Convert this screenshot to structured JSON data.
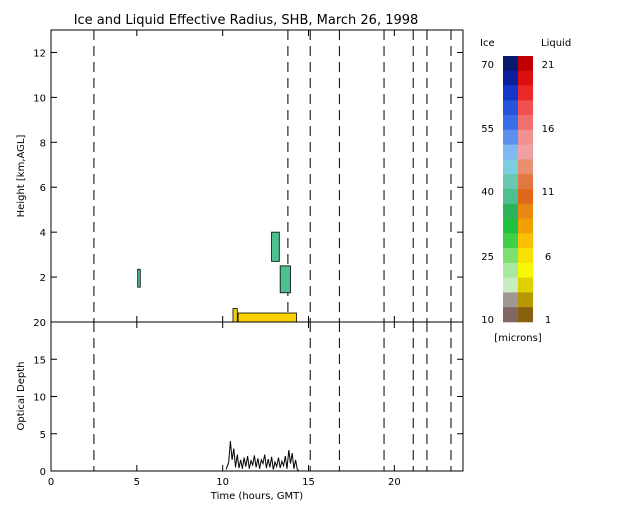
{
  "chart_data": [
    {
      "type": "heatmap",
      "title": "Ice and Liquid Effective Radius, SHB, March 26, 1998",
      "ylabel": "Height [km,AGL]",
      "xlim": [
        0,
        24
      ],
      "ylim": [
        0,
        13
      ],
      "yticks": [
        2,
        4,
        6,
        8,
        10,
        12
      ],
      "dashed_times": [
        2.5,
        13.8,
        15.1,
        16.8,
        19.4,
        21.1,
        21.9,
        23.3
      ],
      "ice_regions": [
        {
          "phase": "ice",
          "time_start": 5.05,
          "time_end": 5.2,
          "height_bottom": 1.55,
          "height_top": 2.35
        },
        {
          "phase": "ice",
          "time_start": 12.85,
          "time_end": 13.3,
          "height_bottom": 2.7,
          "height_top": 4.0
        },
        {
          "phase": "ice",
          "time_start": 13.35,
          "time_end": 13.95,
          "height_bottom": 1.3,
          "height_top": 2.5
        }
      ],
      "liquid_regions": [
        {
          "phase": "liquid",
          "time_start": 10.9,
          "time_end": 14.3,
          "height_bottom": 0.0,
          "height_top": 0.4
        },
        {
          "phase": "liquid",
          "time_start": 10.6,
          "time_end": 10.85,
          "height_bottom": 0.0,
          "height_top": 0.6
        }
      ]
    },
    {
      "type": "line",
      "ylabel": "Optical Depth",
      "xlabel": "Time (hours, GMT)",
      "xlim": [
        0,
        24
      ],
      "ylim": [
        0,
        20
      ],
      "xticks": [
        0,
        5,
        10,
        15,
        20
      ],
      "yticks": [
        0,
        5,
        10,
        15,
        20
      ],
      "series": [
        {
          "x": [
            10.2,
            10.35,
            10.45,
            10.55,
            10.65,
            10.75,
            10.85,
            10.95,
            11.05,
            11.15,
            11.25,
            11.35,
            11.45,
            11.55,
            11.65,
            11.75,
            11.85,
            11.95,
            12.05,
            12.15,
            12.25,
            12.35,
            12.45,
            12.55,
            12.65,
            12.75,
            12.85,
            12.95,
            13.05,
            13.15,
            13.25,
            13.35,
            13.45,
            13.55,
            13.65,
            13.75,
            13.85,
            13.95,
            14.05,
            14.15,
            14.25,
            14.35,
            14.45
          ],
          "y": [
            0.2,
            1.2,
            4.0,
            1.5,
            3.0,
            0.5,
            2.2,
            0.4,
            1.5,
            0.3,
            1.8,
            0.6,
            2.0,
            0.3,
            1.4,
            0.8,
            2.1,
            0.5,
            1.7,
            0.3,
            1.5,
            1.0,
            2.2,
            0.4,
            1.6,
            0.5,
            1.9,
            0.2,
            1.2,
            0.6,
            1.8,
            0.4,
            1.3,
            0.7,
            2.0,
            0.3,
            2.8,
            1.0,
            2.4,
            0.3,
            1.5,
            0.2,
            0.0
          ]
        }
      ],
      "dashed_times": [
        2.5,
        15.1,
        16.8,
        19.4,
        21.1,
        21.9,
        23.3
      ]
    }
  ],
  "colorbar": {
    "ice_label": "Ice",
    "liquid_label": "Liquid",
    "units_label": "[microns]",
    "ice_ticks": [
      "70",
      "55",
      "40",
      "25",
      "10"
    ],
    "liquid_ticks": [
      "21",
      "16",
      "11",
      "6",
      "1"
    ],
    "ice_colors": [
      "#0a1a6e",
      "#0c1f9e",
      "#1536c8",
      "#2455dc",
      "#3a6ee8",
      "#5c90ee",
      "#82b8f0",
      "#7ccfe0",
      "#68c8b0",
      "#4cc090",
      "#2cb45c",
      "#20c040",
      "#40d048",
      "#7ce070",
      "#a8e8a0",
      "#c8ecc0",
      "#a09890",
      "#806860"
    ],
    "liquid_colors": [
      "#c00000",
      "#dc1010",
      "#ec2828",
      "#f05050",
      "#f07070",
      "#f09090",
      "#f0a0a0",
      "#e89070",
      "#e07840",
      "#e06818",
      "#e88810",
      "#f0a000",
      "#f8c000",
      "#f8e000",
      "#f8f800",
      "#e0d000",
      "#b89800",
      "#886010"
    ]
  }
}
